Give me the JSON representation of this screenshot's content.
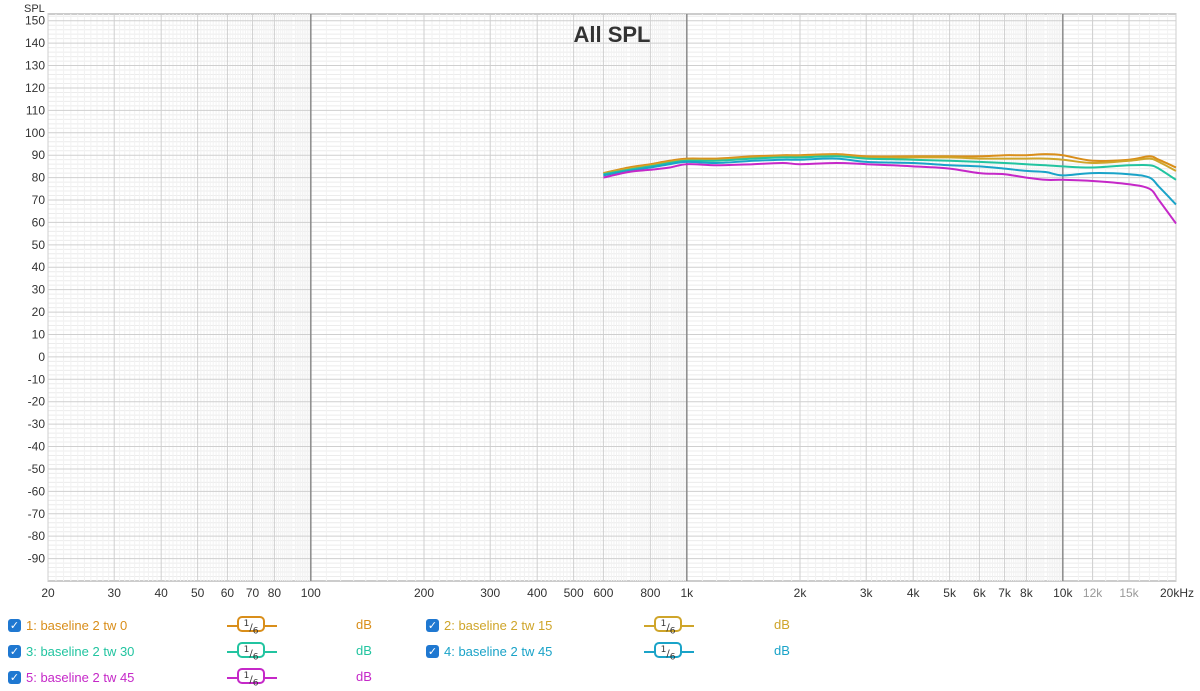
{
  "chart_data": {
    "type": "line",
    "title": "All SPL",
    "ylabel": "SPL",
    "xscale": "log",
    "xlim": [
      20,
      20000
    ],
    "ylim": [
      -100,
      153
    ],
    "y_ticks": [
      150,
      140,
      130,
      120,
      110,
      100,
      90,
      80,
      70,
      60,
      50,
      40,
      30,
      20,
      10,
      0,
      -10,
      -20,
      -30,
      -40,
      -50,
      -60,
      -70,
      -80,
      -90
    ],
    "x_ticks": [
      {
        "v": 20,
        "label": "20",
        "minor": false
      },
      {
        "v": 30,
        "label": "30",
        "minor": false
      },
      {
        "v": 40,
        "label": "40",
        "minor": false
      },
      {
        "v": 50,
        "label": "50",
        "minor": false
      },
      {
        "v": 60,
        "label": "60",
        "minor": false
      },
      {
        "v": 70,
        "label": "70",
        "minor": false
      },
      {
        "v": 80,
        "label": "80",
        "minor": false
      },
      {
        "v": 100,
        "label": "100",
        "minor": false
      },
      {
        "v": 200,
        "label": "200",
        "minor": false
      },
      {
        "v": 300,
        "label": "300",
        "minor": false
      },
      {
        "v": 400,
        "label": "400",
        "minor": false
      },
      {
        "v": 500,
        "label": "500",
        "minor": false
      },
      {
        "v": 600,
        "label": "600",
        "minor": false
      },
      {
        "v": 800,
        "label": "800",
        "minor": false
      },
      {
        "v": 1000,
        "label": "1k",
        "minor": false
      },
      {
        "v": 2000,
        "label": "2k",
        "minor": false
      },
      {
        "v": 3000,
        "label": "3k",
        "minor": false
      },
      {
        "v": 4000,
        "label": "4k",
        "minor": false
      },
      {
        "v": 5000,
        "label": "5k",
        "minor": false
      },
      {
        "v": 6000,
        "label": "6k",
        "minor": false
      },
      {
        "v": 7000,
        "label": "7k",
        "minor": false
      },
      {
        "v": 8000,
        "label": "8k",
        "minor": false
      },
      {
        "v": 10000,
        "label": "10k",
        "minor": false
      },
      {
        "v": 12000,
        "label": "12k",
        "minor": true
      },
      {
        "v": 15000,
        "label": "15k",
        "minor": true
      },
      {
        "v": 20000,
        "label": "20kHz",
        "minor": false
      }
    ],
    "grid": true,
    "x": [
      600,
      700,
      800,
      900,
      1000,
      1200,
      1500,
      1800,
      2000,
      2500,
      3000,
      4000,
      5000,
      6000,
      7000,
      8000,
      9000,
      10000,
      12000,
      15000,
      17000,
      18000,
      20000
    ],
    "series": [
      {
        "name": "1: baseline 2 tw 0",
        "color": "#d98e1a",
        "values": [
          82,
          84.5,
          86,
          87.5,
          88.5,
          88.5,
          89.5,
          90,
          90,
          90.5,
          89.5,
          89.5,
          89.5,
          89.5,
          90,
          90,
          90.5,
          90,
          87.5,
          88,
          89.5,
          88,
          84.5
        ]
      },
      {
        "name": "2: baseline 2 tw 15",
        "color": "#cfa52a",
        "values": [
          82,
          84,
          85.5,
          87,
          88,
          88,
          89,
          89.5,
          89.5,
          90,
          89,
          89,
          89,
          88.5,
          88.5,
          88.5,
          88.5,
          88,
          86.5,
          87.5,
          88.5,
          87,
          83
        ]
      },
      {
        "name": "3: baseline 2 tw 30",
        "color": "#22c4a0",
        "values": [
          81.5,
          83.5,
          85,
          86.5,
          87.5,
          87.5,
          88.5,
          89,
          89,
          89.5,
          88.5,
          88,
          87.5,
          87,
          86.5,
          86,
          85.5,
          85,
          84.5,
          85.5,
          85.5,
          84,
          79
        ]
      },
      {
        "name": "4: baseline 2 tw 45",
        "color": "#1aa3c8",
        "values": [
          81,
          83,
          84.5,
          86,
          87,
          86.5,
          87.5,
          88,
          88,
          88.5,
          87,
          86.5,
          85.5,
          85,
          84,
          83,
          82.5,
          81,
          82,
          81.5,
          80,
          76,
          68
        ]
      },
      {
        "name": "5: baseline 2 tw 45",
        "color": "#c528c8",
        "values": [
          80,
          82.5,
          83.5,
          84.5,
          86,
          85.5,
          86,
          86.5,
          86,
          86.5,
          86,
          85,
          84,
          82,
          81.5,
          80,
          79,
          79,
          78.5,
          77,
          75,
          70,
          59.5
        ]
      }
    ]
  },
  "legend": [
    {
      "label": "1: baseline 2 tw 0",
      "color": "#d98e1a",
      "smoothing_num": "1",
      "smoothing_den": "6",
      "unit": "dB",
      "checkbox": "✓"
    },
    {
      "label": "2: baseline 2 tw 15",
      "color": "#cfa52a",
      "smoothing_num": "1",
      "smoothing_den": "6",
      "unit": "dB",
      "checkbox": "✓"
    },
    {
      "label": "3: baseline 2 tw 30",
      "color": "#22c4a0",
      "smoothing_num": "1",
      "smoothing_den": "6",
      "unit": "dB",
      "checkbox": "✓"
    },
    {
      "label": "4: baseline 2 tw 45",
      "color": "#1aa3c8",
      "smoothing_num": "1",
      "smoothing_den": "6",
      "unit": "dB",
      "checkbox": "✓"
    },
    {
      "label": "5: baseline 2 tw 45",
      "color": "#c528c8",
      "smoothing_num": "1",
      "smoothing_den": "6",
      "unit": "dB",
      "checkbox": "✓"
    }
  ]
}
